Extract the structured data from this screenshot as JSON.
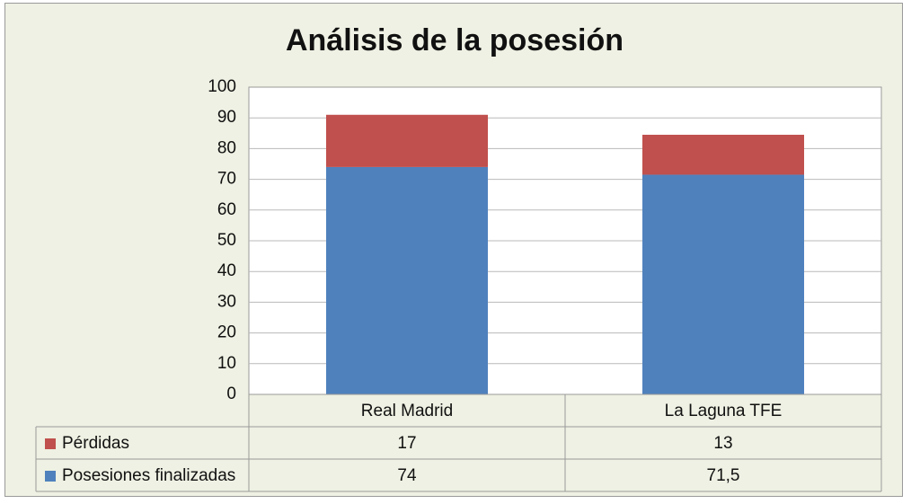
{
  "chart_data": {
    "type": "bar",
    "stacked": true,
    "title": "Análisis de la posesión",
    "categories": [
      "Real Madrid",
      "La Laguna TFE"
    ],
    "series": [
      {
        "name": "Posesiones finalizadas",
        "color": "#4f81bd",
        "values": [
          74,
          71.5
        ],
        "display": [
          "74",
          "71,5"
        ]
      },
      {
        "name": "Pérdidas",
        "color": "#c0504d",
        "values": [
          17,
          13
        ],
        "display": [
          "17",
          "13"
        ]
      }
    ],
    "yticks": [
      "0",
      "10",
      "20",
      "30",
      "40",
      "50",
      "60",
      "70",
      "80",
      "90",
      "100"
    ],
    "ylim": [
      0,
      100
    ],
    "grid": true,
    "legend": "data-table",
    "xlabel": "",
    "ylabel": ""
  }
}
